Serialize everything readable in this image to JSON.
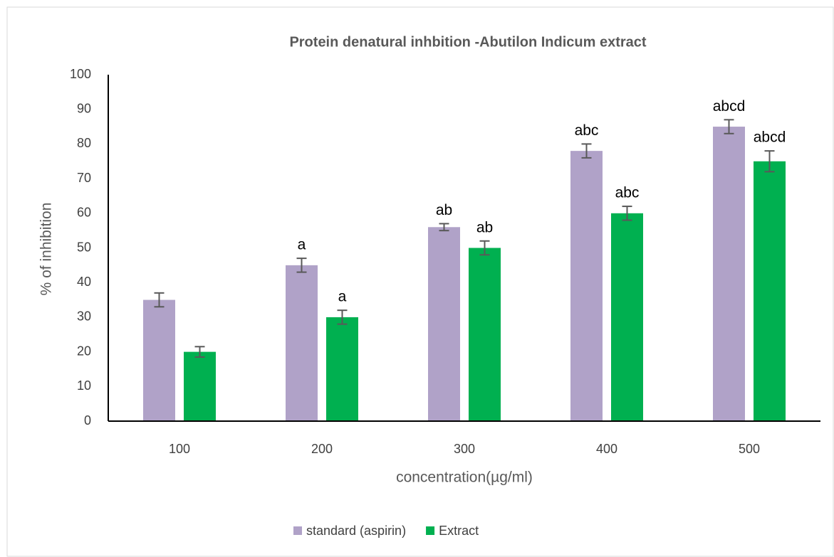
{
  "chart_data": {
    "type": "bar",
    "title": "Protein denatural  inhbition -Abutilon Indicum    extract",
    "x_label": "concentration(µg/ml)",
    "y_label": "% of inhibition",
    "categories": [
      "100",
      "200",
      "300",
      "400",
      "500"
    ],
    "series": [
      {
        "name": "standard (aspirin)",
        "color": "#b0a2c8",
        "values": [
          35,
          45,
          56,
          78,
          85
        ],
        "errors": [
          2,
          2,
          1,
          2,
          2
        ],
        "labels": [
          null,
          "a",
          "ab",
          "abc",
          "abcd"
        ]
      },
      {
        "name": "Extract",
        "color": "#00b050",
        "values": [
          20,
          30,
          50,
          60,
          75
        ],
        "errors": [
          1.5,
          2,
          2,
          2,
          3
        ],
        "labels": [
          null,
          "a",
          "ab",
          "abc",
          "abcd"
        ]
      }
    ],
    "ylim": [
      0,
      100
    ],
    "yticks": [
      0,
      10,
      20,
      30,
      40,
      50,
      60,
      70,
      80,
      90,
      100
    ],
    "grid": false,
    "legend": "bottom"
  }
}
